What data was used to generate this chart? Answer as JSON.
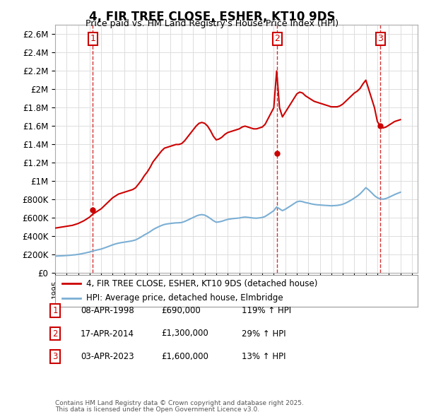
{
  "title": "4, FIR TREE CLOSE, ESHER, KT10 9DS",
  "subtitle": "Price paid vs. HM Land Registry's House Price Index (HPI)",
  "red_label": "4, FIR TREE CLOSE, ESHER, KT10 9DS (detached house)",
  "blue_label": "HPI: Average price, detached house, Elmbridge",
  "transactions": [
    {
      "num": 1,
      "date": "08-APR-1998",
      "price": "£690,000",
      "change": "119% ↑ HPI"
    },
    {
      "num": 2,
      "date": "17-APR-2014",
      "price": "£1,300,000",
      "change": "29% ↑ HPI"
    },
    {
      "num": 3,
      "date": "03-APR-2023",
      "price": "£1,600,000",
      "change": "13% ↑ HPI"
    }
  ],
  "footnote1": "Contains HM Land Registry data © Crown copyright and database right 2025.",
  "footnote2": "This data is licensed under the Open Government Licence v3.0.",
  "red_color": "#cc0000",
  "blue_color": "#7bafd4",
  "grid_color": "#dddddd",
  "background_color": "#ffffff",
  "transaction_marker_color": "#cc0000",
  "ylim": [
    0,
    2700000
  ],
  "xlim_start": 1995.0,
  "xlim_end": 2026.5,
  "hpi_red_series": {
    "dates": [
      1995.0,
      1995.25,
      1995.5,
      1995.75,
      1996.0,
      1996.25,
      1996.5,
      1996.75,
      1997.0,
      1997.25,
      1997.5,
      1997.75,
      1998.0,
      1998.25,
      1998.5,
      1998.75,
      1999.0,
      1999.25,
      1999.5,
      1999.75,
      2000.0,
      2000.25,
      2000.5,
      2000.75,
      2001.0,
      2001.25,
      2001.5,
      2001.75,
      2002.0,
      2002.25,
      2002.5,
      2002.75,
      2003.0,
      2003.25,
      2003.5,
      2003.75,
      2004.0,
      2004.25,
      2004.5,
      2004.75,
      2005.0,
      2005.25,
      2005.5,
      2005.75,
      2006.0,
      2006.25,
      2006.5,
      2006.75,
      2007.0,
      2007.25,
      2007.5,
      2007.75,
      2008.0,
      2008.25,
      2008.5,
      2008.75,
      2009.0,
      2009.25,
      2009.5,
      2009.75,
      2010.0,
      2010.25,
      2010.5,
      2010.75,
      2011.0,
      2011.25,
      2011.5,
      2011.75,
      2012.0,
      2012.25,
      2012.5,
      2012.75,
      2013.0,
      2013.25,
      2013.5,
      2013.75,
      2014.0,
      2014.25,
      2014.5,
      2014.75,
      2015.0,
      2015.25,
      2015.5,
      2015.75,
      2016.0,
      2016.25,
      2016.5,
      2016.75,
      2017.0,
      2017.25,
      2017.5,
      2017.75,
      2018.0,
      2018.25,
      2018.5,
      2018.75,
      2019.0,
      2019.25,
      2019.5,
      2019.75,
      2020.0,
      2020.25,
      2020.5,
      2020.75,
      2021.0,
      2021.25,
      2021.5,
      2021.75,
      2022.0,
      2022.25,
      2022.5,
      2022.75,
      2023.0,
      2023.25,
      2023.5,
      2023.75,
      2024.0,
      2024.25,
      2024.5,
      2024.75,
      2025.0
    ],
    "values": [
      490000,
      495000,
      500000,
      505000,
      510000,
      515000,
      520000,
      530000,
      540000,
      555000,
      570000,
      590000,
      610000,
      640000,
      660000,
      680000,
      700000,
      730000,
      760000,
      790000,
      820000,
      840000,
      860000,
      870000,
      880000,
      890000,
      900000,
      910000,
      930000,
      970000,
      1010000,
      1060000,
      1100000,
      1150000,
      1210000,
      1250000,
      1290000,
      1330000,
      1360000,
      1370000,
      1380000,
      1390000,
      1400000,
      1400000,
      1410000,
      1440000,
      1480000,
      1520000,
      1560000,
      1600000,
      1630000,
      1640000,
      1630000,
      1600000,
      1550000,
      1490000,
      1450000,
      1460000,
      1480000,
      1510000,
      1530000,
      1540000,
      1550000,
      1560000,
      1570000,
      1590000,
      1600000,
      1590000,
      1580000,
      1570000,
      1570000,
      1580000,
      1590000,
      1620000,
      1680000,
      1740000,
      1800000,
      2200000,
      1800000,
      1700000,
      1750000,
      1800000,
      1850000,
      1900000,
      1950000,
      1970000,
      1960000,
      1930000,
      1910000,
      1890000,
      1870000,
      1860000,
      1850000,
      1840000,
      1830000,
      1820000,
      1810000,
      1810000,
      1810000,
      1820000,
      1840000,
      1870000,
      1900000,
      1930000,
      1960000,
      1980000,
      2010000,
      2060000,
      2100000,
      2000000,
      1900000,
      1800000,
      1650000,
      1600000,
      1580000,
      1590000,
      1610000,
      1630000,
      1650000,
      1660000,
      1670000
    ]
  },
  "hpi_blue_series": {
    "dates": [
      1995.0,
      1995.25,
      1995.5,
      1995.75,
      1996.0,
      1996.25,
      1996.5,
      1996.75,
      1997.0,
      1997.25,
      1997.5,
      1997.75,
      1998.0,
      1998.25,
      1998.5,
      1998.75,
      1999.0,
      1999.25,
      1999.5,
      1999.75,
      2000.0,
      2000.25,
      2000.5,
      2000.75,
      2001.0,
      2001.25,
      2001.5,
      2001.75,
      2002.0,
      2002.25,
      2002.5,
      2002.75,
      2003.0,
      2003.25,
      2003.5,
      2003.75,
      2004.0,
      2004.25,
      2004.5,
      2004.75,
      2005.0,
      2005.25,
      2005.5,
      2005.75,
      2006.0,
      2006.25,
      2006.5,
      2006.75,
      2007.0,
      2007.25,
      2007.5,
      2007.75,
      2008.0,
      2008.25,
      2008.5,
      2008.75,
      2009.0,
      2009.25,
      2009.5,
      2009.75,
      2010.0,
      2010.25,
      2010.5,
      2010.75,
      2011.0,
      2011.25,
      2011.5,
      2011.75,
      2012.0,
      2012.25,
      2012.5,
      2012.75,
      2013.0,
      2013.25,
      2013.5,
      2013.75,
      2014.0,
      2014.25,
      2014.5,
      2014.75,
      2015.0,
      2015.25,
      2015.5,
      2015.75,
      2016.0,
      2016.25,
      2016.5,
      2016.75,
      2017.0,
      2017.25,
      2017.5,
      2017.75,
      2018.0,
      2018.25,
      2018.5,
      2018.75,
      2019.0,
      2019.25,
      2019.5,
      2019.75,
      2020.0,
      2020.25,
      2020.5,
      2020.75,
      2021.0,
      2021.25,
      2021.5,
      2021.75,
      2022.0,
      2022.25,
      2022.5,
      2022.75,
      2023.0,
      2023.25,
      2023.5,
      2023.75,
      2024.0,
      2024.25,
      2024.5,
      2024.75,
      2025.0
    ],
    "values": [
      185000,
      187000,
      188000,
      190000,
      192000,
      194000,
      197000,
      200000,
      204000,
      210000,
      216000,
      223000,
      230000,
      240000,
      248000,
      255000,
      262000,
      273000,
      284000,
      296000,
      308000,
      318000,
      326000,
      332000,
      337000,
      342000,
      347000,
      353000,
      362000,
      378000,
      396000,
      416000,
      432000,
      451000,
      473000,
      490000,
      505000,
      519000,
      530000,
      536000,
      540000,
      544000,
      547000,
      548000,
      551000,
      562000,
      576000,
      591000,
      606000,
      621000,
      632000,
      637000,
      631000,
      615000,
      594000,
      571000,
      554000,
      558000,
      565000,
      576000,
      585000,
      590000,
      594000,
      597000,
      600000,
      606000,
      610000,
      607000,
      603000,
      599000,
      598000,
      601000,
      606000,
      617000,
      637000,
      658000,
      680000,
      720000,
      700000,
      680000,
      695000,
      715000,
      735000,
      756000,
      776000,
      783000,
      778000,
      768000,
      762000,
      754000,
      748000,
      744000,
      742000,
      739000,
      737000,
      735000,
      733000,
      735000,
      737000,
      742000,
      750000,
      763000,
      779000,
      797000,
      817000,
      838000,
      863000,
      896000,
      930000,
      905000,
      875000,
      843000,
      820000,
      808000,
      805000,
      812000,
      825000,
      840000,
      855000,
      868000,
      880000
    ]
  },
  "transaction_dates": [
    1998.27,
    2014.3,
    2023.27
  ],
  "transaction_prices": [
    690000,
    1300000,
    1600000
  ],
  "transaction_labels": [
    "1",
    "2",
    "3"
  ]
}
